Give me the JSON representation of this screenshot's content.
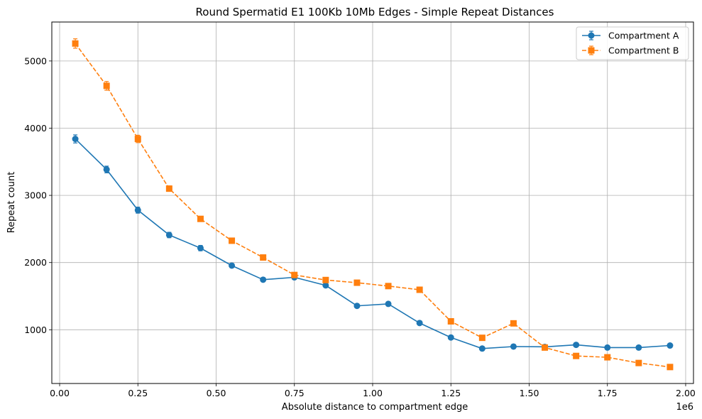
{
  "chart_data": {
    "type": "line",
    "title": "Round Spermatid E1 100Kb 10Mb Edges - Simple Repeat Distances",
    "xlabel": "Absolute distance to compartment edge",
    "ylabel": "Repeat count",
    "x_offset_label": "1e6",
    "xlim": [
      -0.025,
      2.025
    ],
    "ylim": [
      200,
      5580
    ],
    "xticks": [
      0.0,
      0.25,
      0.5,
      0.75,
      1.0,
      1.25,
      1.5,
      1.75,
      2.0
    ],
    "xtick_labels": [
      "0.00",
      "0.25",
      "0.50",
      "0.75",
      "1.00",
      "1.25",
      "1.50",
      "1.75",
      "2.00"
    ],
    "yticks": [
      1000,
      2000,
      3000,
      4000,
      5000
    ],
    "ytick_labels": [
      "1000",
      "2000",
      "3000",
      "4000",
      "5000"
    ],
    "grid": true,
    "legend_position": "top-right",
    "x": [
      0.05,
      0.15,
      0.25,
      0.35,
      0.45,
      0.55,
      0.65,
      0.75,
      0.85,
      0.95,
      1.05,
      1.15,
      1.25,
      1.35,
      1.45,
      1.55,
      1.65,
      1.75,
      1.85,
      1.95
    ],
    "series": [
      {
        "name": "Compartment A",
        "color": "#1f77b4",
        "marker": "circle",
        "linestyle": "solid",
        "values": [
          3840,
          3385,
          2780,
          2410,
          2215,
          1955,
          1745,
          1780,
          1660,
          1355,
          1385,
          1100,
          885,
          720,
          750,
          745,
          775,
          735,
          735,
          765
        ],
        "errors": [
          60,
          50,
          45,
          40,
          40,
          30,
          25,
          30,
          30,
          25,
          25,
          20,
          20,
          15,
          15,
          15,
          15,
          15,
          15,
          15
        ]
      },
      {
        "name": "Compartment B",
        "color": "#ff7f0e",
        "marker": "square",
        "linestyle": "dashed",
        "values": [
          5260,
          4630,
          3840,
          3100,
          2650,
          2325,
          2075,
          1815,
          1740,
          1700,
          1650,
          1595,
          1125,
          880,
          1095,
          735,
          610,
          590,
          505,
          445
        ],
        "errors": [
          70,
          65,
          55,
          40,
          35,
          30,
          25,
          25,
          25,
          25,
          25,
          25,
          20,
          15,
          20,
          15,
          15,
          15,
          15,
          15
        ]
      }
    ]
  }
}
